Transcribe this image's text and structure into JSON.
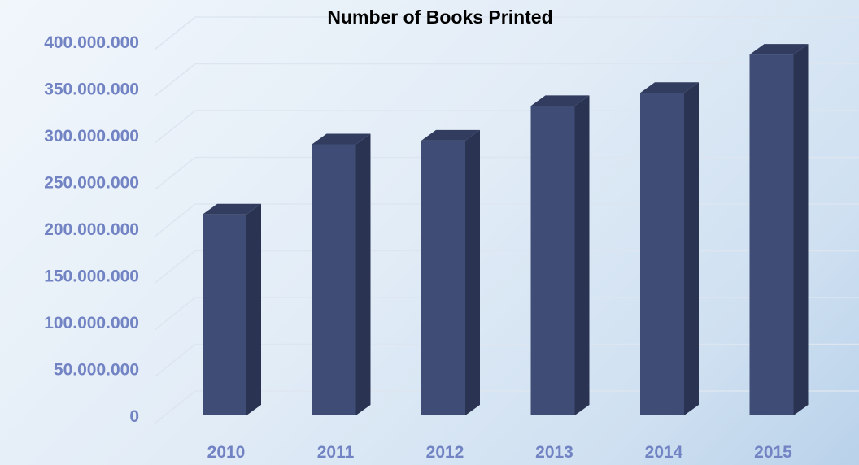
{
  "chart_data": {
    "type": "bar",
    "title": "Number of Books Printed",
    "xlabel": "",
    "ylabel": "",
    "categories": [
      "2010",
      "2011",
      "2012",
      "2013",
      "2014",
      "2015"
    ],
    "values": [
      215000000,
      290000000,
      294000000,
      331000000,
      345000000,
      386000000
    ],
    "ylim": [
      0,
      400000000
    ],
    "y_ticks": [
      0,
      50000000,
      100000000,
      150000000,
      200000000,
      250000000,
      300000000,
      350000000,
      400000000
    ],
    "y_tick_labels": [
      "0",
      "50.000.000",
      "100.000.000",
      "150.000.000",
      "200.000.000",
      "250.000.000",
      "300.000.000",
      "350.000.000",
      "400.000.000"
    ],
    "grid": true,
    "legend": "none",
    "bar_style": "3d-column"
  },
  "colors": {
    "bar_front": "#3f4d76",
    "bar_side": "#2a3352",
    "bar_top": "#313c5f",
    "tick_label": "#7283c4",
    "gridline": "#dde6f0"
  }
}
